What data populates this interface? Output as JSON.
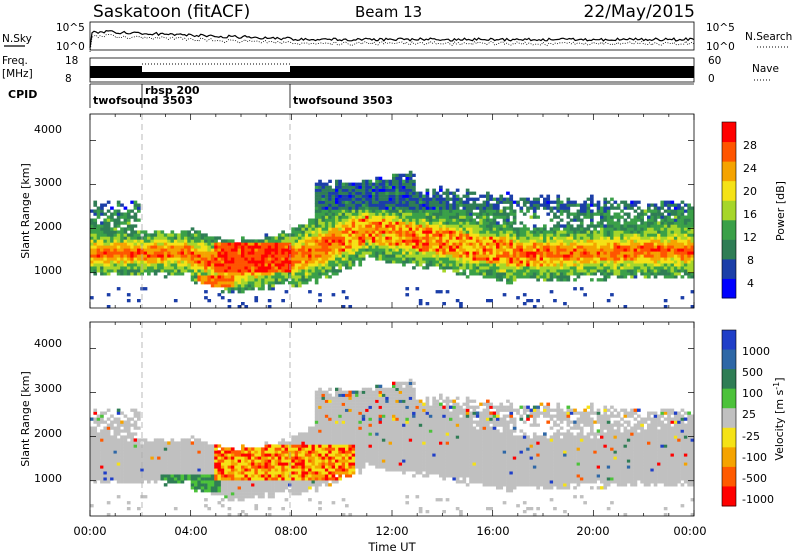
{
  "header": {
    "title": "Saskatoon (fitACF)",
    "beam": "Beam 13",
    "date": "22/May/2015"
  },
  "colors": {
    "noise_line": "#000000",
    "ground_scatter": "#c0c0c0",
    "power_scale": [
      "#0000ff",
      "#1b3ea8",
      "#2f7d55",
      "#3aa048",
      "#a6d62a",
      "#f5e216",
      "#f5a300",
      "#ff5500",
      "#ff0000"
    ],
    "velocity_scale": [
      "#1f3ec8",
      "#2e67a6",
      "#2f7d55",
      "#4cc23a",
      "#c0c0c0",
      "#f5e216",
      "#f5a300",
      "#ff5a00",
      "#ff0000"
    ]
  },
  "chart_data": [
    {
      "type": "line",
      "name": "noise-panel",
      "left_label": "N.Sky",
      "right_label": "N.Search",
      "left_ticks": [
        "10^5",
        "10^0"
      ],
      "right_ticks": [
        "10^5",
        "10^0"
      ],
      "x_range": [
        "00:00",
        "24:00"
      ]
    },
    {
      "type": "line",
      "name": "freq-nave-panel",
      "left_label": "Freq.",
      "left_unit": "[MHz]",
      "right_label": "Nave",
      "left_ticks": [
        "18",
        "8"
      ],
      "right_ticks": [
        "60",
        "0"
      ],
      "freq_mhz": [
        8,
        18
      ],
      "nave": [
        0,
        60
      ]
    },
    {
      "type": "table",
      "name": "cpid-panel",
      "label": "CPID",
      "segments": [
        {
          "start_hour": 0,
          "label": "twofsound 3503"
        },
        {
          "start_hour": 2,
          "label": "rbsp 200"
        },
        {
          "start_hour": 8,
          "label": "twofsound 3503"
        }
      ]
    },
    {
      "type": "heatmap",
      "name": "power-panel",
      "ylabel": "Slant Range [km]",
      "yticks": [
        "4000",
        "3000",
        "2000",
        "1000"
      ],
      "ylim": [
        200,
        4600
      ],
      "colorbar_label": "Power [dB]",
      "colorbar_ticks": [
        "28",
        "24",
        "20",
        "16",
        "12",
        "8",
        "4"
      ],
      "colorbar_range": [
        0,
        30
      ],
      "features": [
        {
          "hours": [
            0,
            24
          ],
          "range_km": [
            1000,
            2000
          ],
          "power_db": [
            8,
            16
          ]
        },
        {
          "hours": [
            5,
            8
          ],
          "range_km": [
            1000,
            1700
          ],
          "power_db": [
            24,
            30
          ]
        },
        {
          "hours": [
            4,
            6
          ],
          "range_km": [
            700,
            900
          ],
          "power_db": [
            20,
            28
          ]
        },
        {
          "hours": [
            10,
            18
          ],
          "range_km": [
            1300,
            2100
          ],
          "power_db": [
            16,
            28
          ]
        },
        {
          "hours": [
            9,
            13
          ],
          "range_km": [
            2000,
            3000
          ],
          "power_db": [
            4,
            12
          ]
        }
      ]
    },
    {
      "type": "heatmap",
      "name": "velocity-panel",
      "ylabel": "Slant Range [km]",
      "yticks": [
        "4000",
        "3000",
        "2000",
        "1000"
      ],
      "ylim": [
        200,
        4600
      ],
      "colorbar_label": "Velocity [m s",
      "colorbar_unit_exp": "-1",
      "colorbar_ticks": [
        "1000",
        "500",
        "100",
        "25",
        "-25",
        "-100",
        "-500",
        "-1000"
      ],
      "colorbar_range": [
        -1000,
        1000
      ],
      "xlabel": "Time UT",
      "xticks": [
        "00:00",
        "04:00",
        "08:00",
        "12:00",
        "16:00",
        "20:00",
        "00:00"
      ],
      "features": [
        {
          "hours": [
            0,
            24
          ],
          "range_km": [
            1000,
            2000
          ],
          "velocity": "ground scatter"
        },
        {
          "hours": [
            5,
            10.5
          ],
          "range_km": [
            1000,
            1800
          ],
          "velocity_ms": [
            -500,
            -100
          ]
        },
        {
          "hours": [
            3,
            5
          ],
          "range_km": [
            800,
            1100
          ],
          "velocity_ms": [
            100,
            500
          ]
        },
        {
          "hours": [
            9,
            24
          ],
          "range_km": [
            1500,
            3200
          ],
          "velocity": "ground scatter"
        }
      ]
    }
  ]
}
